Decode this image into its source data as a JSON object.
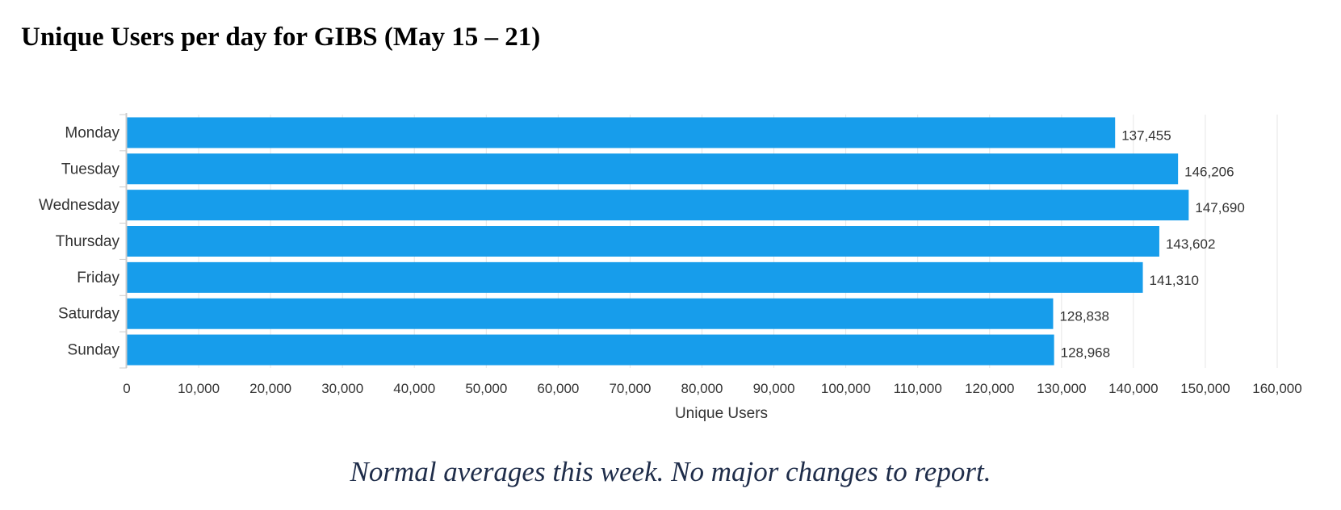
{
  "page": {
    "title": "Unique Users per day for GIBS (May 15 – 21)",
    "note": "Normal averages this week.  No major changes to report."
  },
  "colors": {
    "bar": "#179deb",
    "grid": "#e6e6e6",
    "axis": "#cccccc",
    "text": "#333333",
    "note": "#1f2d4a"
  },
  "chart_data": {
    "type": "bar",
    "orientation": "horizontal",
    "categories": [
      "Monday",
      "Tuesday",
      "Wednesday",
      "Thursday",
      "Friday",
      "Saturday",
      "Sunday"
    ],
    "values": [
      137455,
      146206,
      147690,
      143602,
      141310,
      128838,
      128968
    ],
    "value_labels": [
      "137,455",
      "146,206",
      "147,690",
      "143,602",
      "141,310",
      "128,838",
      "128,968"
    ],
    "xlabel": "Unique Users",
    "xlim": [
      0,
      160000
    ],
    "x_ticks": [
      0,
      10000,
      20000,
      30000,
      40000,
      50000,
      60000,
      70000,
      80000,
      90000,
      100000,
      110000,
      120000,
      130000,
      140000,
      150000,
      160000
    ],
    "x_tick_labels": [
      "0",
      "10,000",
      "20,000",
      "30,000",
      "40,000",
      "50,000",
      "60,000",
      "70,000",
      "80,000",
      "90,000",
      "100,000",
      "110,000",
      "120,000",
      "130,000",
      "140,000",
      "150,000",
      "160,000"
    ],
    "grid": true,
    "legend": "none"
  }
}
